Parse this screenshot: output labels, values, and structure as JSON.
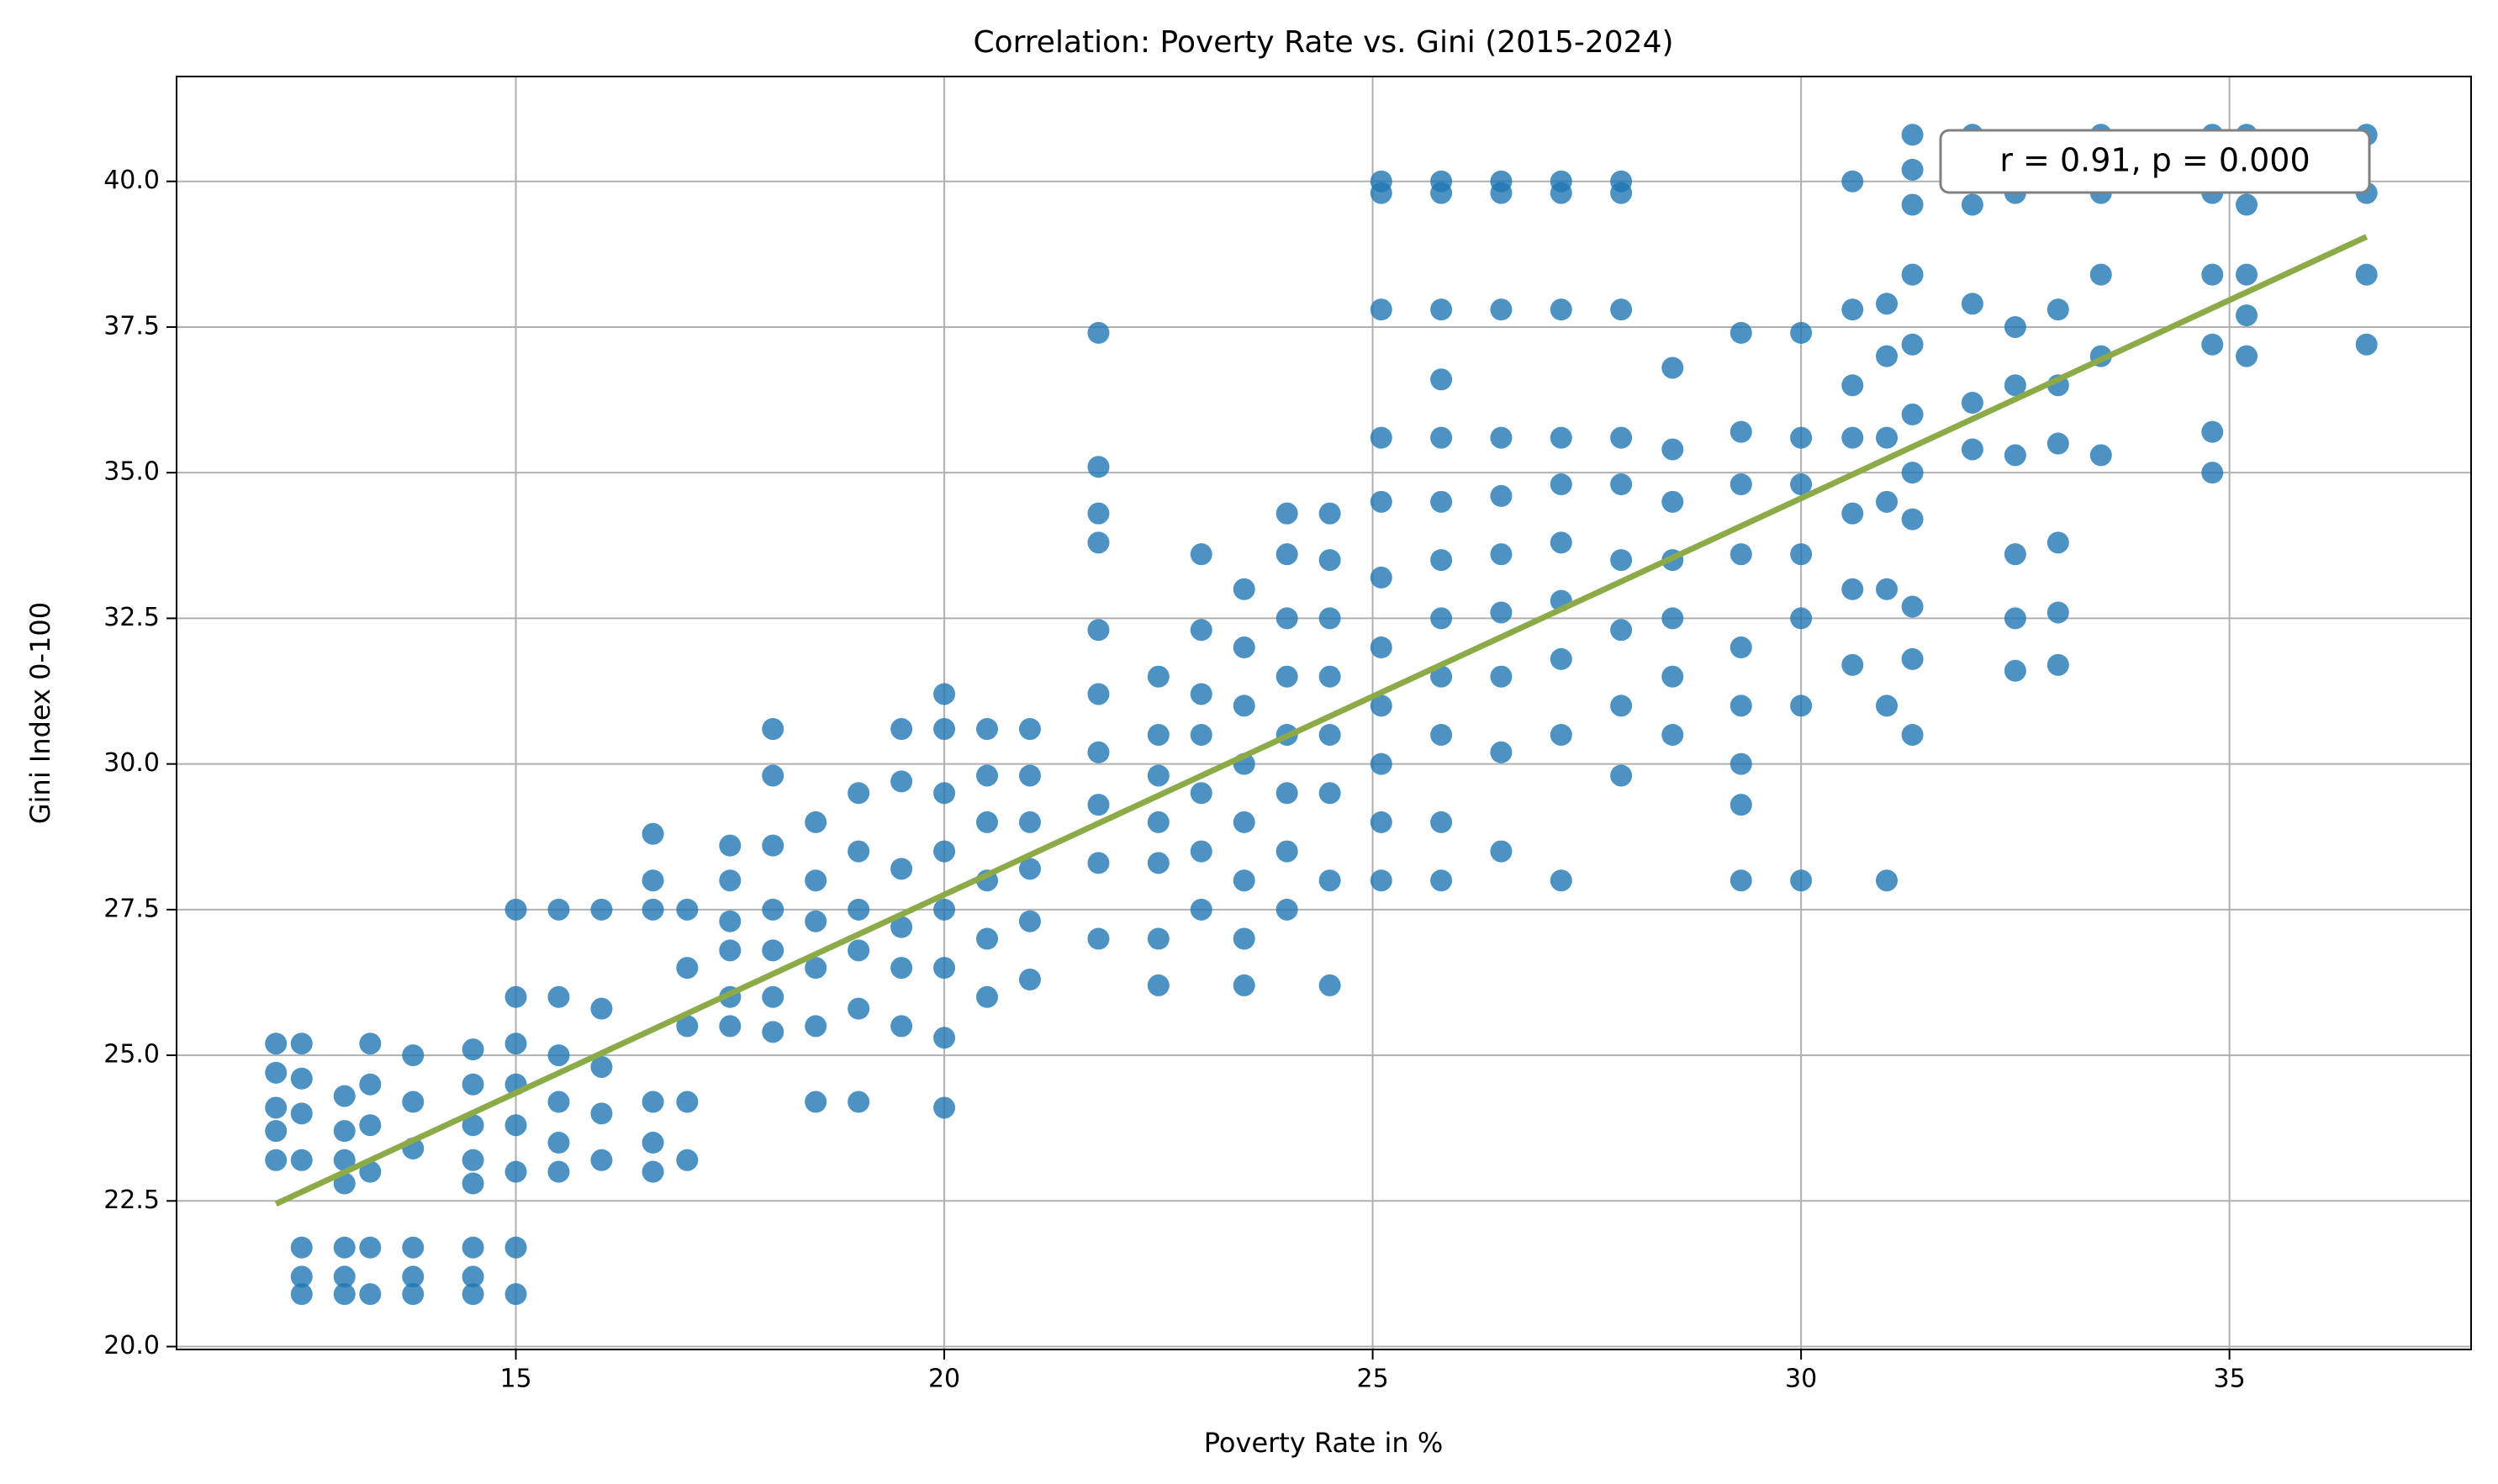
{
  "chart_data": {
    "type": "scatter",
    "title": "Correlation: Poverty Rate vs. Gini (2015-2024)",
    "x_label": "Poverty Rate in %",
    "y_label": "Gini Index 0-100",
    "annotation": "r = 0.91, p = 0.000",
    "color": "#1f77b4",
    "grid": true,
    "xlim": [
      11.04,
      37.82
    ],
    "ylim": [
      19.95,
      41.8
    ],
    "xticks": [
      15,
      20,
      25,
      30,
      35
    ],
    "yticks": [
      {
        "value": 20,
        "label": "20.0"
      },
      22.5,
      {
        "value": 25,
        "label": "25.0"
      },
      27.5,
      {
        "value": 30,
        "label": "30.0"
      },
      32.5,
      {
        "value": 35,
        "label": "35.0"
      },
      37.5,
      {
        "value": 40,
        "label": "40.0"
      }
    ],
    "x": [
      12.2,
      12.2,
      12.2,
      12.2,
      12.2,
      12.5,
      12.5,
      12.5,
      12.5,
      12.5,
      12.5,
      12.5,
      13.0,
      13.0,
      13.0,
      13.0,
      13.0,
      13.0,
      13.0,
      13.3,
      13.3,
      13.3,
      13.3,
      13.3,
      13.3,
      13.8,
      13.8,
      13.8,
      13.8,
      13.8,
      13.8,
      14.5,
      14.5,
      14.5,
      14.5,
      14.5,
      14.5,
      14.5,
      14.5,
      15.0,
      15.0,
      15.0,
      15.0,
      15.0,
      15.0,
      15.0,
      15.0,
      15.5,
      15.5,
      15.5,
      15.5,
      15.5,
      15.5,
      16.0,
      16.0,
      16.0,
      16.0,
      16.0,
      16.6,
      16.6,
      16.6,
      16.6,
      16.6,
      16.6,
      17.0,
      17.0,
      17.0,
      17.0,
      17.0,
      17.5,
      17.5,
      17.5,
      17.5,
      17.5,
      17.5,
      18.0,
      18.0,
      18.0,
      18.0,
      18.0,
      18.0,
      18.0,
      18.5,
      18.5,
      18.5,
      18.5,
      18.5,
      18.5,
      19.0,
      19.0,
      19.0,
      19.0,
      19.0,
      19.0,
      19.5,
      19.5,
      19.5,
      19.5,
      19.5,
      19.5,
      20.0,
      20.0,
      20.0,
      20.0,
      20.0,
      20.0,
      20.0,
      20.0,
      20.5,
      20.5,
      20.5,
      20.5,
      20.5,
      20.5,
      21.0,
      21.0,
      21.0,
      21.0,
      21.0,
      21.0,
      21.8,
      21.8,
      21.8,
      21.8,
      21.8,
      21.8,
      21.8,
      21.8,
      21.8,
      21.8,
      22.5,
      22.5,
      22.5,
      22.5,
      22.5,
      22.5,
      22.5,
      23.0,
      23.0,
      23.0,
      23.0,
      23.0,
      23.0,
      23.0,
      23.5,
      23.5,
      23.5,
      23.5,
      23.5,
      23.5,
      23.5,
      23.5,
      24.0,
      24.0,
      24.0,
      24.0,
      24.0,
      24.0,
      24.0,
      24.0,
      24.5,
      24.5,
      24.5,
      24.5,
      24.5,
      24.5,
      24.5,
      24.5,
      25.1,
      25.1,
      25.1,
      25.1,
      25.1,
      25.1,
      25.1,
      25.1,
      25.1,
      25.1,
      25.1,
      25.8,
      25.8,
      25.8,
      25.8,
      25.8,
      25.8,
      25.8,
      25.8,
      25.8,
      25.8,
      25.8,
      25.8,
      26.5,
      26.5,
      26.5,
      26.5,
      26.5,
      26.5,
      26.5,
      26.5,
      26.5,
      26.5,
      27.2,
      27.2,
      27.2,
      27.2,
      27.2,
      27.2,
      27.2,
      27.2,
      27.2,
      27.2,
      27.9,
      27.9,
      27.9,
      27.9,
      27.9,
      27.9,
      27.9,
      27.9,
      27.9,
      28.5,
      28.5,
      28.5,
      28.5,
      28.5,
      28.5,
      28.5,
      29.3,
      29.3,
      29.3,
      29.3,
      29.3,
      29.3,
      29.3,
      29.3,
      29.3,
      30.0,
      30.0,
      30.0,
      30.0,
      30.0,
      30.0,
      30.0,
      30.6,
      30.6,
      30.6,
      30.6,
      30.6,
      30.6,
      30.6,
      31.0,
      31.0,
      31.0,
      31.0,
      31.0,
      31.0,
      31.0,
      31.3,
      31.3,
      31.3,
      31.3,
      31.3,
      31.3,
      31.3,
      31.3,
      31.3,
      31.3,
      31.3,
      32.0,
      32.0,
      32.0,
      32.0,
      32.0,
      32.5,
      32.5,
      32.5,
      32.5,
      32.5,
      32.5,
      32.5,
      33.0,
      33.0,
      33.0,
      33.0,
      33.0,
      33.0,
      33.0,
      33.5,
      33.5,
      33.5,
      33.5,
      33.5,
      34.8,
      34.8,
      34.8,
      34.8,
      34.8,
      34.8,
      35.2,
      35.2,
      35.2,
      35.2,
      35.2,
      35.2,
      36.6,
      36.6,
      36.6,
      36.6
    ],
    "values": [
      25.2,
      24.7,
      24.1,
      23.7,
      23.2,
      25.2,
      24.6,
      24.0,
      23.2,
      21.7,
      21.2,
      20.9,
      24.3,
      23.7,
      23.2,
      22.8,
      21.7,
      21.2,
      20.9,
      25.2,
      24.5,
      23.8,
      23.0,
      21.7,
      20.9,
      25.0,
      24.2,
      23.4,
      21.7,
      21.2,
      20.9,
      25.1,
      24.5,
      23.8,
      23.2,
      22.8,
      21.7,
      21.2,
      20.9,
      27.5,
      26.0,
      25.2,
      24.5,
      23.8,
      23.0,
      21.7,
      20.9,
      27.5,
      26.0,
      25.0,
      24.2,
      23.5,
      23.0,
      27.5,
      25.8,
      24.8,
      24.0,
      23.2,
      28.8,
      28.0,
      27.5,
      24.2,
      23.5,
      23.0,
      27.5,
      26.5,
      25.5,
      24.2,
      23.2,
      28.6,
      28.0,
      27.3,
      26.8,
      26.0,
      25.5,
      30.6,
      29.8,
      28.6,
      27.5,
      26.8,
      26.0,
      25.4,
      29.0,
      28.0,
      27.3,
      26.5,
      25.5,
      24.2,
      29.5,
      28.5,
      27.5,
      26.8,
      25.8,
      24.2,
      30.6,
      29.7,
      28.2,
      27.2,
      26.5,
      25.5,
      31.2,
      30.6,
      29.5,
      28.5,
      27.5,
      26.5,
      25.3,
      24.1,
      30.6,
      29.8,
      29.0,
      28.0,
      27.0,
      26.0,
      30.6,
      29.8,
      29.0,
      28.2,
      27.3,
      26.3,
      37.4,
      35.1,
      34.3,
      33.8,
      32.3,
      31.2,
      30.2,
      29.3,
      28.3,
      27.0,
      31.5,
      30.5,
      29.8,
      29.0,
      28.3,
      27.0,
      26.2,
      33.6,
      32.3,
      31.2,
      30.5,
      29.5,
      28.5,
      27.5,
      33.0,
      32.0,
      31.0,
      30.0,
      29.0,
      28.0,
      27.0,
      26.2,
      34.3,
      33.6,
      32.5,
      31.5,
      30.5,
      29.5,
      28.5,
      27.5,
      34.3,
      33.5,
      32.5,
      31.5,
      30.5,
      29.5,
      28.0,
      26.2,
      40.0,
      39.8,
      37.8,
      35.6,
      34.5,
      33.2,
      32.0,
      31.0,
      30.0,
      29.0,
      28.0,
      40.0,
      39.8,
      37.8,
      36.6,
      35.6,
      34.5,
      33.5,
      32.5,
      31.5,
      30.5,
      29.0,
      28.0,
      40.0,
      39.8,
      37.8,
      35.6,
      34.6,
      33.6,
      32.6,
      31.5,
      30.2,
      28.5,
      40.0,
      39.8,
      37.8,
      35.6,
      34.8,
      33.8,
      32.8,
      31.8,
      30.5,
      28.0,
      40.0,
      39.8,
      37.8,
      35.6,
      34.8,
      33.5,
      32.3,
      31.0,
      29.8,
      36.8,
      35.4,
      34.5,
      33.5,
      32.5,
      31.5,
      30.5,
      37.4,
      35.7,
      34.8,
      33.6,
      32.0,
      31.0,
      30.0,
      29.3,
      28.0,
      37.4,
      35.6,
      34.8,
      33.6,
      32.5,
      31.0,
      28.0,
      40.0,
      37.8,
      36.5,
      35.6,
      34.3,
      33.0,
      31.7,
      37.9,
      37.0,
      35.6,
      34.5,
      33.0,
      31.0,
      28.0,
      40.8,
      40.2,
      39.6,
      38.4,
      37.2,
      36.0,
      35.0,
      34.2,
      32.7,
      31.8,
      30.5,
      40.8,
      39.6,
      37.9,
      36.2,
      35.4,
      39.8,
      37.5,
      36.5,
      35.3,
      33.6,
      32.5,
      31.6,
      40.0,
      37.8,
      36.5,
      35.5,
      33.8,
      32.6,
      31.7,
      40.8,
      39.8,
      38.4,
      37.0,
      35.3,
      40.8,
      39.8,
      38.4,
      37.2,
      35.7,
      35.0,
      40.8,
      40.0,
      39.6,
      38.4,
      37.7,
      37.0,
      40.8,
      39.8,
      38.4,
      37.2
    ],
    "trend_line": {
      "x": [
        12.2,
        36.6
      ],
      "y": [
        22.45,
        39.05
      ],
      "color": "#8cab48"
    }
  }
}
